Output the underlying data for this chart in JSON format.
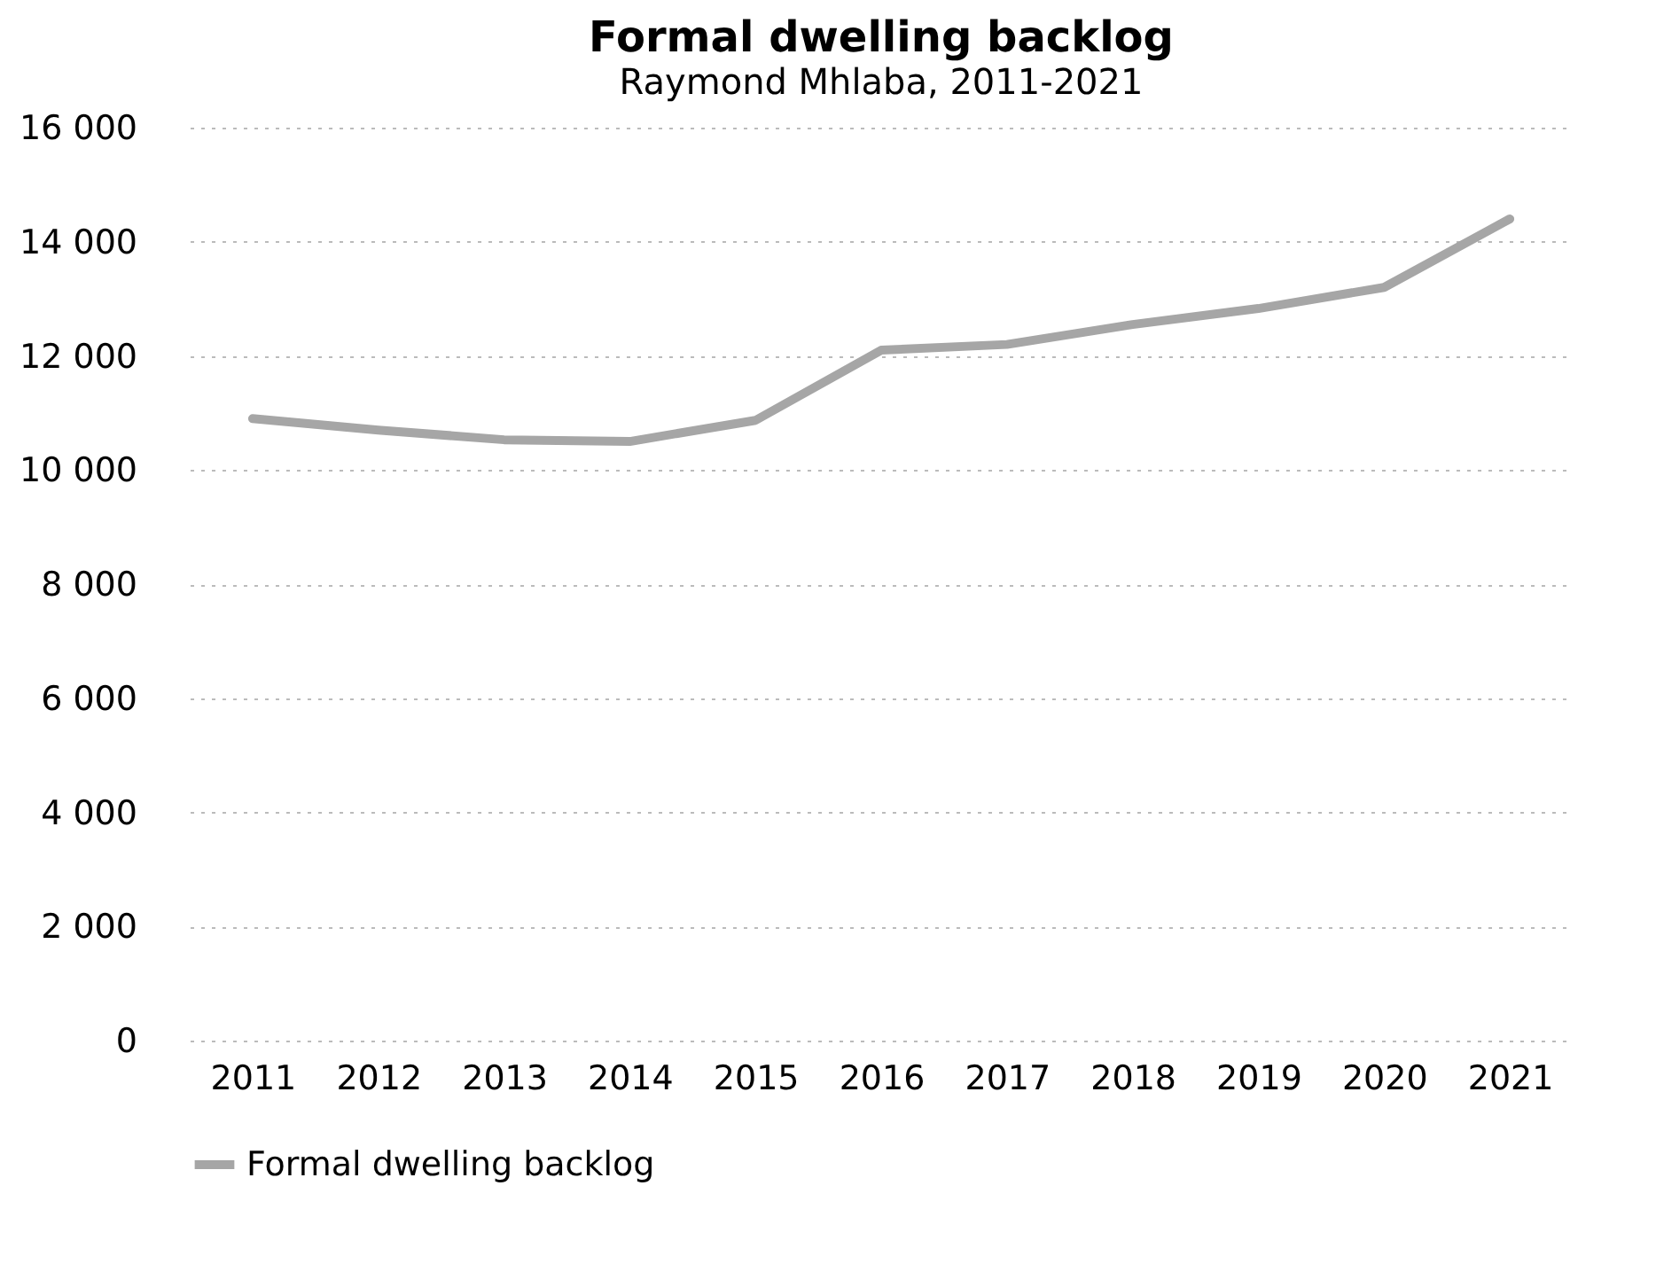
{
  "chart_data": {
    "type": "line",
    "title": "Formal dwelling backlog",
    "subtitle": "Raymond Mhlaba, 2011-2021",
    "categories": [
      "2011",
      "2012",
      "2013",
      "2014",
      "2015",
      "2016",
      "2017",
      "2018",
      "2019",
      "2020",
      "2021"
    ],
    "series": [
      {
        "name": "Formal dwelling backlog",
        "color": "#a6a6a6",
        "values": [
          10900,
          10700,
          10530,
          10500,
          10870,
          12100,
          12200,
          12550,
          12830,
          13200,
          14400
        ]
      }
    ],
    "ylim": [
      0,
      16000
    ],
    "yticks": [
      {
        "value": 0,
        "label": "0"
      },
      {
        "value": 2000,
        "label": "2 000"
      },
      {
        "value": 4000,
        "label": "4 000"
      },
      {
        "value": 6000,
        "label": "6 000"
      },
      {
        "value": 8000,
        "label": "8 000"
      },
      {
        "value": 10000,
        "label": "10 000"
      },
      {
        "value": 12000,
        "label": "12 000"
      },
      {
        "value": 14000,
        "label": "14 000"
      },
      {
        "value": 16000,
        "label": "16 000"
      }
    ],
    "grid": "y",
    "legend": "bottom",
    "marker": "none",
    "line_style": "solid"
  }
}
